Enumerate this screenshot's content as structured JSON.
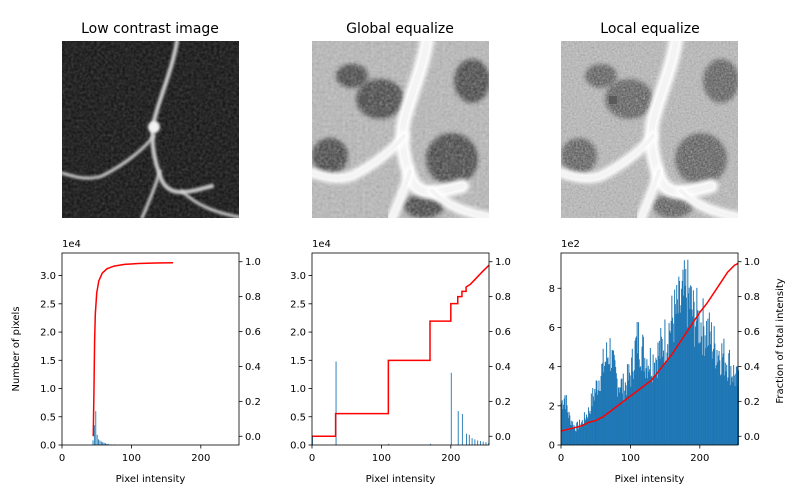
{
  "chart_data": [
    {
      "type": "image",
      "title": "Low contrast image",
      "variant": "low",
      "description_colors": {
        "background": "#111111",
        "vessel": "#d8d8d8"
      }
    },
    {
      "type": "image",
      "title": "Global equalize",
      "variant": "global"
    },
    {
      "type": "image",
      "title": "Local equalize",
      "variant": "local"
    },
    {
      "type": "bar",
      "title": "",
      "xlabel": "Pixel intensity",
      "ylabel": "Number of pixels",
      "y_multiplier": "1e4",
      "xlim": [
        0,
        255
      ],
      "ylim": [
        0,
        3.4
      ],
      "xticks": [
        0,
        100,
        200
      ],
      "yticks": [
        0.0,
        0.5,
        1.0,
        1.5,
        2.0,
        2.5,
        3.0
      ],
      "ytick_labels": [
        "0.0",
        "0.5",
        "1.0",
        "1.5",
        "2.0",
        "2.5",
        "3.0"
      ],
      "y2lim": [
        -0.05,
        1.05
      ],
      "y2ticks": [
        0.0,
        0.2,
        0.4,
        0.6,
        0.8,
        1.0
      ],
      "y2label": "",
      "hist": [
        [
          44,
          0.08
        ],
        [
          46,
          0.35
        ],
        [
          48,
          0.6
        ],
        [
          50,
          0.18
        ],
        [
          52,
          0.1
        ],
        [
          54,
          0.08
        ],
        [
          56,
          0.06
        ],
        [
          58,
          0.05
        ],
        [
          60,
          0.04
        ],
        [
          62,
          0.03
        ],
        [
          64,
          0.02
        ],
        [
          66,
          0.02
        ],
        [
          70,
          0.01
        ],
        [
          75,
          0.01
        ]
      ],
      "cdf": [
        [
          45,
          0.0
        ],
        [
          46,
          0.25
        ],
        [
          47,
          0.55
        ],
        [
          48,
          0.7
        ],
        [
          50,
          0.82
        ],
        [
          53,
          0.89
        ],
        [
          58,
          0.935
        ],
        [
          65,
          0.96
        ],
        [
          75,
          0.975
        ],
        [
          90,
          0.985
        ],
        [
          110,
          0.99
        ],
        [
          135,
          0.993
        ],
        [
          160,
          0.994
        ]
      ],
      "bar_color": "#1f77b4",
      "line_color": "#ff0000"
    },
    {
      "type": "bar",
      "title": "",
      "xlabel": "Pixel intensity",
      "ylabel": "",
      "y_multiplier": "1e4",
      "xlim": [
        0,
        255
      ],
      "ylim": [
        0,
        3.4
      ],
      "xticks": [
        0,
        100,
        200
      ],
      "yticks": [
        0.0,
        0.5,
        1.0,
        1.5,
        2.0,
        2.5,
        3.0
      ],
      "ytick_labels": [
        "0.0",
        "0.5",
        "1.0",
        "1.5",
        "2.0",
        "2.5",
        "3.0"
      ],
      "y2lim": [
        -0.05,
        1.05
      ],
      "y2ticks": [
        0.0,
        0.2,
        0.4,
        0.6,
        0.8,
        1.0
      ],
      "y2label": "",
      "hist": [
        [
          0,
          0.15
        ],
        [
          34,
          1.48
        ],
        [
          110,
          0.02
        ],
        [
          170,
          0.02
        ],
        [
          200,
          1.28
        ],
        [
          210,
          0.6
        ],
        [
          216,
          0.55
        ],
        [
          222,
          0.2
        ],
        [
          226,
          0.18
        ],
        [
          230,
          0.12
        ],
        [
          234,
          0.1
        ],
        [
          238,
          0.08
        ],
        [
          242,
          0.07
        ],
        [
          246,
          0.06
        ],
        [
          250,
          0.05
        ],
        [
          254,
          0.04
        ]
      ],
      "cdf": [
        [
          0,
          0.0
        ],
        [
          34,
          0.0
        ],
        [
          34,
          0.13
        ],
        [
          110,
          0.13
        ],
        [
          110,
          0.435
        ],
        [
          170,
          0.435
        ],
        [
          170,
          0.66
        ],
        [
          200,
          0.66
        ],
        [
          200,
          0.76
        ],
        [
          210,
          0.76
        ],
        [
          210,
          0.8
        ],
        [
          216,
          0.8
        ],
        [
          216,
          0.83
        ],
        [
          222,
          0.83
        ],
        [
          222,
          0.855
        ],
        [
          228,
          0.87
        ],
        [
          234,
          0.895
        ],
        [
          240,
          0.92
        ],
        [
          246,
          0.945
        ],
        [
          255,
          0.98
        ]
      ],
      "bar_color": "#1f77b4",
      "line_color": "#ff0000"
    },
    {
      "type": "bar",
      "title": "",
      "xlabel": "Pixel intensity",
      "ylabel": "",
      "y_multiplier": "1e2",
      "xlim": [
        0,
        255
      ],
      "ylim": [
        0,
        9.8
      ],
      "xticks": [
        0,
        100,
        200
      ],
      "yticks": [
        0,
        2,
        4,
        6,
        8
      ],
      "ytick_labels": [
        "0",
        "2",
        "4",
        "6",
        "8"
      ],
      "y2lim": [
        -0.05,
        1.05
      ],
      "y2ticks": [
        0.0,
        0.2,
        0.4,
        0.6,
        0.8,
        1.0
      ],
      "y2label": "Fraction of total intensity",
      "hist_envelope": [
        [
          0,
          2.2
        ],
        [
          5,
          2.6
        ],
        [
          10,
          1.6
        ],
        [
          15,
          1.2
        ],
        [
          20,
          0.9
        ],
        [
          30,
          1.2
        ],
        [
          40,
          1.8
        ],
        [
          45,
          2.5
        ],
        [
          50,
          3.0
        ],
        [
          55,
          3.6
        ],
        [
          60,
          4.1
        ],
        [
          65,
          4.6
        ],
        [
          70,
          5.0
        ],
        [
          75,
          4.0
        ],
        [
          80,
          3.4
        ],
        [
          90,
          3.0
        ],
        [
          100,
          3.8
        ],
        [
          105,
          4.8
        ],
        [
          110,
          5.6
        ],
        [
          115,
          5.2
        ],
        [
          120,
          4.6
        ],
        [
          130,
          4.4
        ],
        [
          140,
          4.8
        ],
        [
          150,
          5.6
        ],
        [
          160,
          6.6
        ],
        [
          170,
          7.2
        ],
        [
          180,
          8.0
        ],
        [
          185,
          7.6
        ],
        [
          190,
          6.8
        ],
        [
          200,
          6.4
        ],
        [
          210,
          6.0
        ],
        [
          220,
          5.2
        ],
        [
          230,
          4.8
        ],
        [
          240,
          4.4
        ],
        [
          250,
          3.6
        ],
        [
          255,
          3.2
        ]
      ],
      "cdf": [
        [
          0,
          0.03
        ],
        [
          10,
          0.04
        ],
        [
          20,
          0.05
        ],
        [
          30,
          0.06
        ],
        [
          40,
          0.08
        ],
        [
          50,
          0.09
        ],
        [
          60,
          0.11
        ],
        [
          70,
          0.14
        ],
        [
          80,
          0.17
        ],
        [
          90,
          0.2
        ],
        [
          100,
          0.23
        ],
        [
          110,
          0.26
        ],
        [
          120,
          0.29
        ],
        [
          130,
          0.32
        ],
        [
          140,
          0.37
        ],
        [
          150,
          0.42
        ],
        [
          160,
          0.47
        ],
        [
          170,
          0.53
        ],
        [
          180,
          0.59
        ],
        [
          190,
          0.65
        ],
        [
          200,
          0.71
        ],
        [
          210,
          0.76
        ],
        [
          220,
          0.82
        ],
        [
          230,
          0.88
        ],
        [
          240,
          0.94
        ],
        [
          250,
          0.98
        ],
        [
          255,
          0.99
        ]
      ],
      "bar_color": "#1f77b4",
      "line_color": "#ff0000"
    }
  ]
}
